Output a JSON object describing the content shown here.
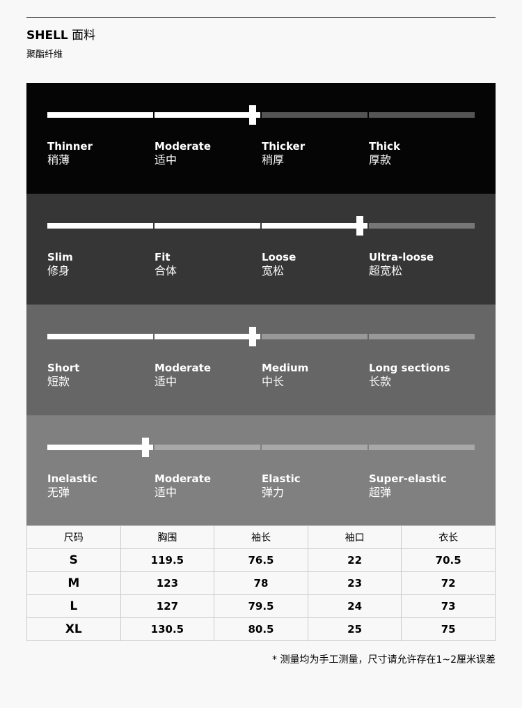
{
  "header": {
    "title_en": "SHELL",
    "title_zh": "面料",
    "material": "聚酯纤维"
  },
  "scales": [
    {
      "name": "thickness",
      "level": 2,
      "steps": 4,
      "bg": "#050505",
      "track": "#555555",
      "options": [
        {
          "en": "Thinner",
          "zh": "稍薄"
        },
        {
          "en": "Moderate",
          "zh": "适中"
        },
        {
          "en": "Thicker",
          "zh": "稍厚"
        },
        {
          "en": "Thick",
          "zh": "厚款"
        }
      ]
    },
    {
      "name": "fit",
      "level": 3,
      "steps": 4,
      "bg": "#363636",
      "track": "#777777",
      "options": [
        {
          "en": "Slim",
          "zh": "修身"
        },
        {
          "en": "Fit",
          "zh": "合体"
        },
        {
          "en": "Loose",
          "zh": "宽松"
        },
        {
          "en": "Ultra-loose",
          "zh": "超宽松"
        }
      ]
    },
    {
      "name": "length",
      "level": 2,
      "steps": 4,
      "bg": "#666666",
      "track": "#999999",
      "options": [
        {
          "en": "Short",
          "zh": "短款"
        },
        {
          "en": "Moderate",
          "zh": "适中"
        },
        {
          "en": "Medium",
          "zh": "中长"
        },
        {
          "en": "Long sections",
          "zh": "长款"
        }
      ]
    },
    {
      "name": "elasticity",
      "level": 1,
      "steps": 4,
      "bg": "#808080",
      "track": "#a8a8a8",
      "options": [
        {
          "en": "Inelastic",
          "zh": "无弹"
        },
        {
          "en": "Moderate",
          "zh": "适中"
        },
        {
          "en": "Elastic",
          "zh": "弹力"
        },
        {
          "en": "Super-elastic",
          "zh": "超弹"
        }
      ]
    }
  ],
  "size_table": {
    "headers": [
      "尺码",
      "胸围",
      "袖长",
      "袖口",
      "衣长"
    ],
    "rows": [
      [
        "S",
        "119.5",
        "76.5",
        "22",
        "70.5"
      ],
      [
        "M",
        "123",
        "78",
        "23",
        "72"
      ],
      [
        "L",
        "127",
        "79.5",
        "24",
        "73"
      ],
      [
        "XL",
        "130.5",
        "80.5",
        "25",
        "75"
      ]
    ]
  },
  "note": "* 测量均为手工测量，尺寸请允许存在1~2厘米误差"
}
